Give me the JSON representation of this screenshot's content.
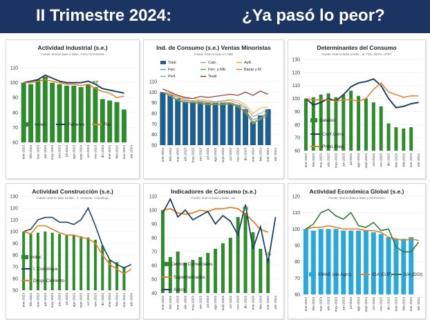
{
  "header": {
    "title_left": "II Trimestre 2024:",
    "title_right": "¿Ya pasó lo peor?"
  },
  "colors": {
    "banner": "#1c3461",
    "green": "#2e8b2e",
    "navy": "#1f3f5f",
    "orange": "#e67e22",
    "blue": "#1f5f8f",
    "skyblue": "#2aa7dd",
    "darkred": "#8b2f2f"
  },
  "chart_data": [
    {
      "type": "bar+line",
      "title": "Actividad Industrial (s.e.)",
      "subtitle": "Fuente: Ieral en base a Indec , Fiel y OJ Ferreres",
      "ylim": [
        60,
        110
      ],
      "yticks": [
        60,
        70,
        80,
        90,
        100,
        110
      ],
      "categories": [
        "ene-2023",
        "feb-2023",
        "mar-2023",
        "abr-2023",
        "may-2023",
        "jun-2023",
        "jul-2023",
        "ago-2023",
        "sept-2023",
        "oct-2023",
        "nov-2023",
        "dic-2023",
        "ene-2024",
        "feb-2024",
        "mar-2024",
        "abr-2024"
      ],
      "bars": {
        "name": "Indec",
        "values": [
          100,
          99,
          102,
          104,
          100,
          99,
          98,
          98,
          97,
          99,
          97,
          89,
          88,
          87,
          82,
          null
        ]
      },
      "lines": [
        {
          "name": "Ferreres",
          "values": [
            100,
            101,
            102,
            105,
            103,
            101,
            100,
            100,
            100,
            101,
            99,
            96,
            95,
            94,
            93,
            null
          ]
        },
        {
          "name": "Fiel",
          "values": [
            100,
            100,
            101,
            102,
            101,
            100,
            99,
            99,
            98,
            99,
            96,
            94,
            93,
            90,
            91,
            null
          ]
        }
      ],
      "labels": [
        {
          "text": "97",
          "index": 10
        }
      ]
    },
    {
      "type": "bar+line",
      "title": "Ind. de Consumo (s.e.) Ventas Minoristas",
      "subtitle": "Fuente: Ieral en base a CAME",
      "ylim": [
        50,
        110
      ],
      "yticks": [
        50,
        60,
        70,
        80,
        90,
        100,
        110
      ],
      "categories": [
        "ene-2023",
        "feb-2023",
        "mar-2023",
        "abr-2023",
        "may-2023",
        "jun-2023",
        "jul-2023",
        "ago-2023",
        "sept-2023",
        "oct-2023",
        "nov-2023",
        "dic-2023",
        "ene-2024",
        "feb-2024",
        "mar-2024",
        "abr-2024"
      ],
      "bars": {
        "name": "Total",
        "values": [
          100,
          97,
          94,
          91,
          91,
          91,
          90,
          90,
          90,
          90,
          88,
          84,
          72,
          78,
          84,
          null
        ]
      },
      "lines": [
        {
          "name": "Calz.",
          "values": [
            100,
            98,
            95,
            92,
            92,
            91,
            90,
            90,
            91,
            90,
            88,
            85,
            70,
            75,
            82,
            null
          ]
        },
        {
          "name": "AyB",
          "values": [
            100,
            99,
            96,
            94,
            94,
            93,
            92,
            91,
            92,
            93,
            92,
            88,
            80,
            85,
            86,
            null
          ]
        },
        {
          "name": "Ferr.",
          "values": [
            100,
            97,
            93,
            90,
            90,
            90,
            88,
            89,
            89,
            89,
            87,
            82,
            74,
            76,
            80,
            null
          ]
        },
        {
          "name": "Ferr. y ME",
          "values": [
            100,
            96,
            92,
            90,
            90,
            89,
            88,
            88,
            88,
            89,
            86,
            80,
            71,
            74,
            78,
            null
          ]
        },
        {
          "name": "Bazar y M",
          "values": [
            100,
            96,
            93,
            91,
            91,
            90,
            89,
            89,
            89,
            90,
            87,
            82,
            72,
            75,
            80,
            null
          ]
        },
        {
          "name": "Perf.",
          "values": [
            100,
            98,
            95,
            93,
            92,
            92,
            91,
            91,
            92,
            92,
            90,
            86,
            77,
            80,
            84,
            null
          ]
        },
        {
          "name": "Textil",
          "values": [
            103,
            100,
            97,
            95,
            94,
            96,
            95,
            96,
            97,
            98,
            97,
            100,
            97,
            101,
            98,
            null
          ]
        }
      ]
    },
    {
      "type": "bar+line",
      "title": "Determinantes del Consumo",
      "subtitle": "Fuente: Ieral en base a Indec , M. Trab., BCRA, UTDT",
      "ylim": [
        60,
        130
      ],
      "yticks": [
        60,
        70,
        80,
        90,
        100,
        110,
        120,
        130
      ],
      "categories": [
        "ene-2023",
        "feb-2023",
        "mar-2023",
        "abr-2023",
        "may-2023",
        "jun-2023",
        "jul-2023",
        "ago-2023",
        "sept-2023",
        "oct-2023",
        "nov-2023",
        "dic-2023",
        "ene-2024",
        "feb-2024",
        "mar-2024",
        "abr-2024"
      ],
      "bars": {
        "name": "Salarios",
        "values": [
          100,
          101,
          103,
          104,
          101,
          103,
          106,
          102,
          100,
          97,
          94,
          81,
          78,
          77,
          78,
          null
        ]
      },
      "lines": [
        {
          "name": "Conf.Cons.",
          "values": [
            100,
            95,
            97,
            100,
            98,
            103,
            109,
            112,
            113,
            115,
            110,
            100,
            93,
            94,
            96,
            97
          ]
        },
        {
          "name": "Prést./Dep.",
          "values": [
            100,
            99,
            99,
            99,
            98,
            99,
            99,
            98,
            100,
            107,
            112,
            105,
            103,
            101,
            102,
            102
          ]
        }
      ]
    },
    {
      "type": "bar+line",
      "title": "Actividad Construcción (s.e.)",
      "subtitle": "Fuente: Ieral en base a Indec , C. Cemento, I Construya",
      "ylim": [
        50,
        130
      ],
      "yticks": [
        50,
        60,
        70,
        80,
        90,
        100,
        110,
        120,
        130
      ],
      "categories": [
        "ene-2023",
        "feb-2023",
        "mar-2023",
        "abr-2023",
        "may-2023",
        "jun-2023",
        "jul-2023",
        "ago-2023",
        "sept-2023",
        "oct-2023",
        "nov-2023",
        "dic-2023",
        "ene-2024",
        "feb-2024",
        "mar-2024",
        "abr-2024"
      ],
      "bars": {
        "name": "Indec",
        "values": [
          100,
          98,
          99,
          100,
          99,
          98,
          97,
          97,
          96,
          95,
          93,
          88,
          76,
          74,
          70,
          null
        ]
      },
      "lines": [
        {
          "name": "I. Construya",
          "values": [
            100,
            102,
            110,
            112,
            112,
            108,
            108,
            106,
            110,
            120,
            105,
            88,
            76,
            72,
            69,
            72
          ]
        },
        {
          "name": "Desp. Cemento",
          "values": [
            100,
            98,
            105,
            105,
            102,
            99,
            97,
            97,
            95,
            94,
            90,
            80,
            72,
            68,
            64,
            68
          ]
        }
      ]
    },
    {
      "type": "bar+line",
      "title": "Indicadores de Consumo (s.e.)",
      "subtitle": "Fuente: Ieral en base a Indec , etc.",
      "ylim": [
        40,
        110
      ],
      "yticks": [
        40,
        50,
        60,
        70,
        80,
        90,
        100,
        110
      ],
      "categories": [
        "ene-2023",
        "feb-2023",
        "mar-2023",
        "abr-2023",
        "may-2023",
        "jun-2023",
        "jul-2023",
        "ago-2023",
        "sept-2023",
        "oct-2023",
        "nov-2023",
        "dic-2023",
        "ene-2024",
        "feb-2024",
        "mar-2024",
        "abr-2024"
      ],
      "bars": {
        "name": "Centros Comerciales",
        "values": [
          100,
          66,
          70,
          62,
          64,
          66,
          69,
          72,
          76,
          80,
          95,
          98,
          84,
          72,
          65,
          null
        ]
      },
      "lines": [
        {
          "name": "Supermercados",
          "values": [
            100,
            101,
            98,
            97,
            98,
            100,
            99,
            101,
            101,
            102,
            101,
            97,
            92,
            86,
            84,
            null
          ]
        },
        {
          "name": "Autos",
          "values": [
            98,
            108,
            95,
            100,
            93,
            96,
            99,
            90,
            96,
            92,
            82,
            104,
            72,
            88,
            62,
            95
          ]
        }
      ],
      "labels": [
        {
          "text": "98",
          "index": 11
        },
        {
          "text": "65",
          "index": 14
        }
      ]
    },
    {
      "type": "bar+line",
      "title": "Actividad Económica Global (s.e.)",
      "subtitle": "Fuente: Ieral en base a Indec y OJ Ferreres",
      "ylim": [
        60,
        120
      ],
      "yticks": [
        60,
        70,
        80,
        90,
        100,
        110,
        120
      ],
      "categories": [
        "ene-2023",
        "feb-2023",
        "mar-2023",
        "abr-2023",
        "may-2023",
        "jun-2023",
        "jul-2023",
        "ago-2023",
        "sept-2023",
        "oct-2023",
        "nov-2023",
        "dic-2023",
        "ene-2024",
        "feb-2024",
        "mar-2024",
        "abr-2024"
      ],
      "bars": {
        "name": "EMAE (sin Agro)",
        "values": [
          100,
          99,
          100,
          100,
          100,
          99,
          99,
          99,
          99,
          98,
          97,
          95,
          94,
          94,
          95,
          null
        ]
      },
      "lines": [
        {
          "name": "IGA (OJF)",
          "values": [
            100,
            101,
            101,
            102,
            101,
            100,
            100,
            100,
            99,
            99,
            98,
            95,
            94,
            93,
            94,
            93
          ]
        },
        {
          "name": "IVA (DGI)",
          "values": [
            100,
            103,
            110,
            112,
            108,
            106,
            110,
            102,
            101,
            104,
            99,
            100,
            89,
            86,
            86,
            92
          ]
        }
      ]
    }
  ]
}
